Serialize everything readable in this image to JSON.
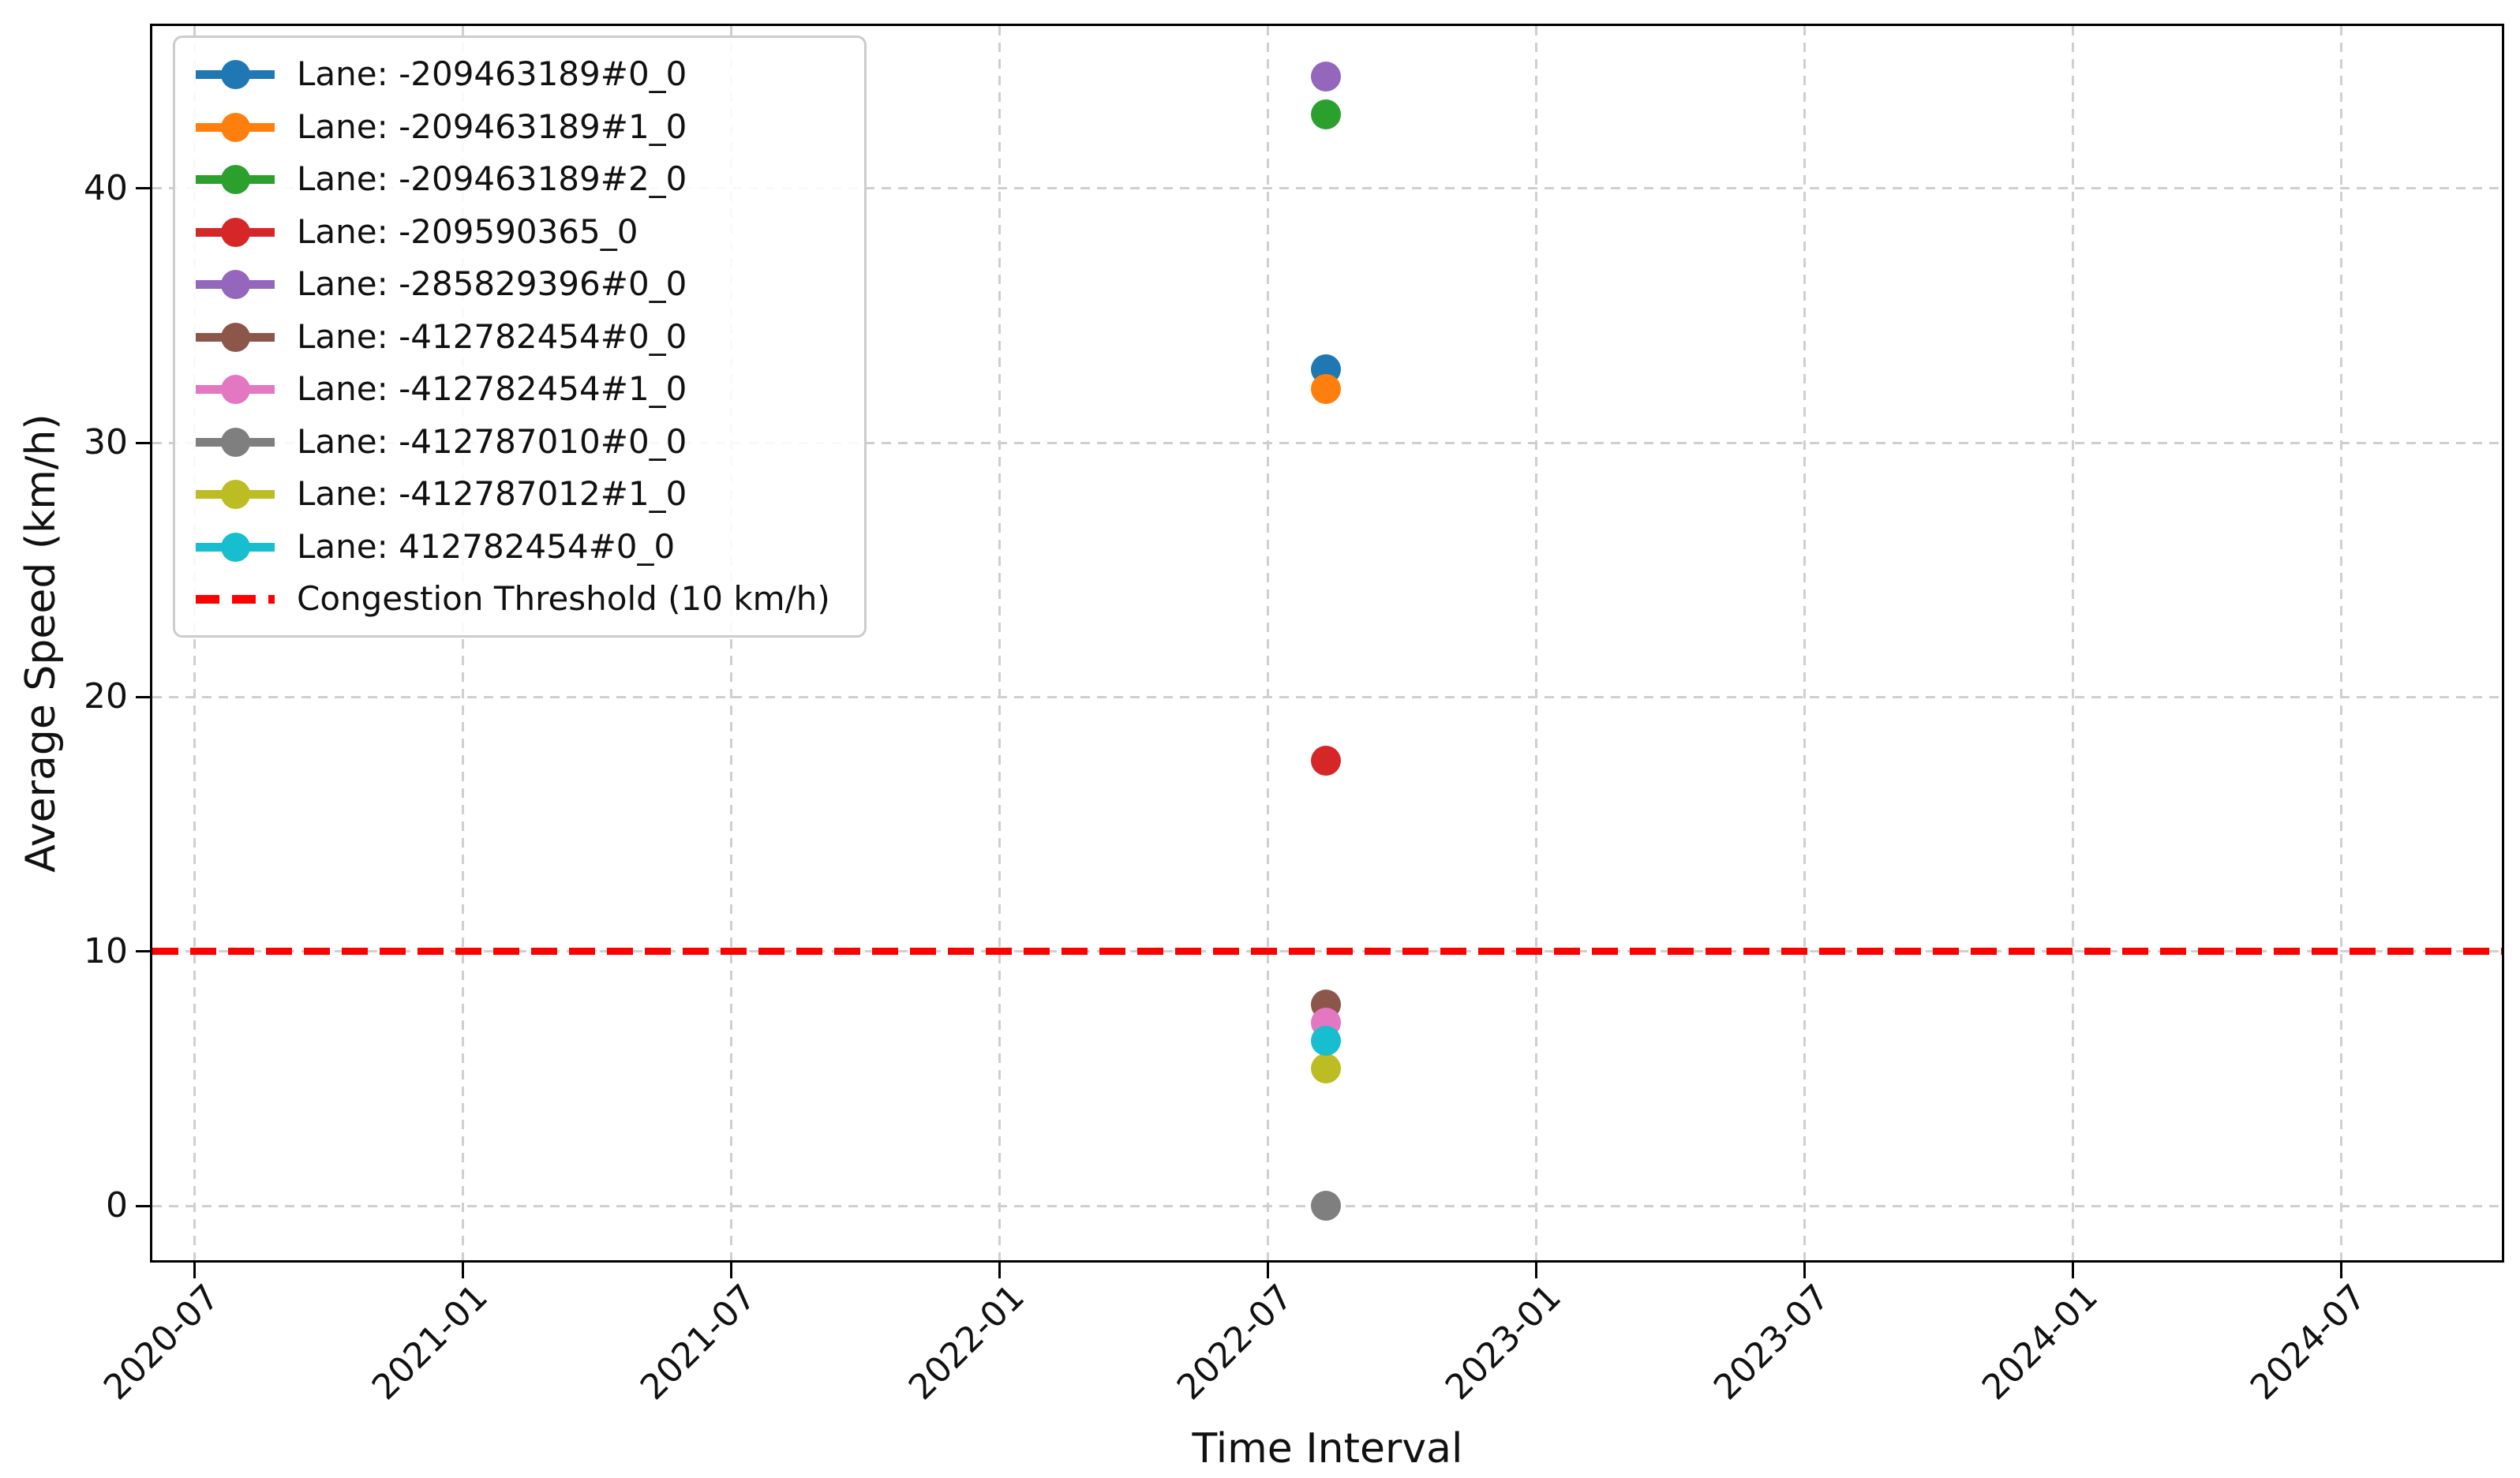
{
  "chart_data": {
    "type": "scatter",
    "title": "",
    "xlabel": "Time Interval",
    "ylabel": "Average Speed (km/h)",
    "x_tick_labels": [
      "2020-07",
      "2021-01",
      "2021-07",
      "2022-01",
      "2022-07",
      "2023-01",
      "2023-07",
      "2024-01",
      "2024-07"
    ],
    "y_ticks": [
      0,
      10,
      20,
      30,
      40
    ],
    "ylim": [
      -2.2,
      46.4
    ],
    "grid": true,
    "legend_position": "upper-left",
    "marker": "o",
    "x_value_label": "2022-08",
    "x_offset_months": 25.3,
    "months_per_tick": 6,
    "series": [
      {
        "name": "Lane: -209463189#0_0",
        "color": "#1f77b4",
        "y": 32.9
      },
      {
        "name": "Lane: -209463189#1_0",
        "color": "#ff7f0e",
        "y": 32.1
      },
      {
        "name": "Lane: -209463189#2_0",
        "color": "#2ca02c",
        "y": 42.9
      },
      {
        "name": "Lane: -209590365_0",
        "color": "#d62728",
        "y": 17.5
      },
      {
        "name": "Lane: -285829396#0_0",
        "color": "#9467bd",
        "y": 44.4
      },
      {
        "name": "Lane: -412782454#0_0",
        "color": "#8c564b",
        "y": 7.9
      },
      {
        "name": "Lane: -412782454#1_0",
        "color": "#e377c2",
        "y": 7.2
      },
      {
        "name": "Lane: -412787010#0_0",
        "color": "#7f7f7f",
        "y": 0.0
      },
      {
        "name": "Lane: -412787012#1_0",
        "color": "#bcbd22",
        "y": 5.4
      },
      {
        "name": "Lane: 412782454#0_0",
        "color": "#17becf",
        "y": 6.5
      }
    ],
    "threshold": {
      "label": "Congestion Threshold (10 km/h)",
      "value": 10,
      "color": "#ff0000",
      "style": "dashed"
    }
  }
}
